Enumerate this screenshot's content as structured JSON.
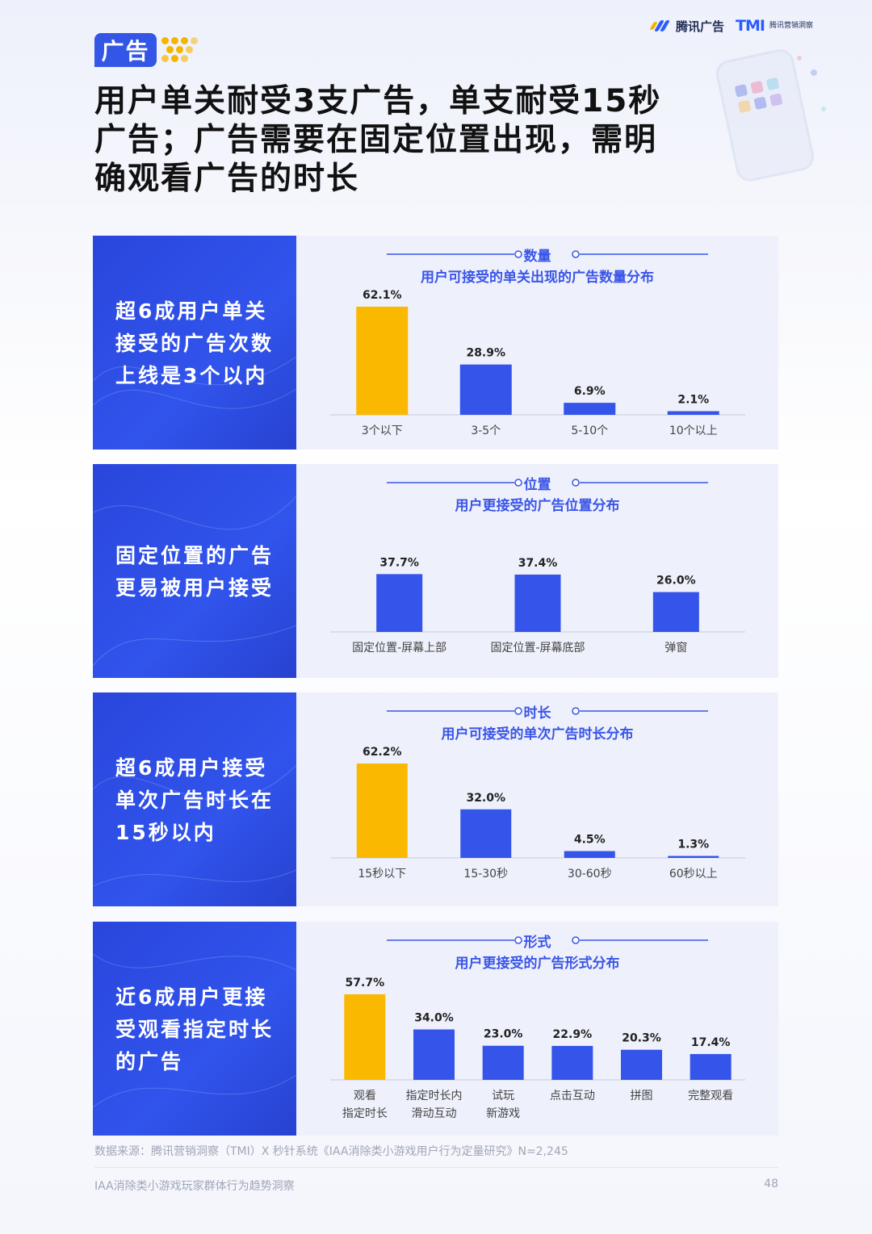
{
  "header": {
    "brand": "腾讯广告",
    "tmi": "TMI",
    "tmi_sub": "腾讯营销洞察",
    "tag": "广告",
    "title": "用户单关耐受3支广告，单支耐受15秒广告；广告需要在固定位置出现，需明确观看广告的时长"
  },
  "colors": {
    "highlight": "#fbb800",
    "bar": "#3454ea",
    "accent": "#3356e6"
  },
  "panels": [
    {
      "side_text": "超6成用户单关接受的广告次数上线是3个以内",
      "chart_title": "数量",
      "chart_subtitle": "用户可接受的单关出现的广告数量分布"
    },
    {
      "side_text": "固定位置的广告更易被用户接受",
      "chart_title": "位置",
      "chart_subtitle": "用户更接受的广告位置分布"
    },
    {
      "side_text": "超6成用户接受单次广告时长在15秒以内",
      "chart_title": "时长",
      "chart_subtitle": "用户可接受的单次广告时长分布"
    },
    {
      "side_text": "近6成用户更接受观看指定时长的广告",
      "chart_title": "形式",
      "chart_subtitle": "用户更接受的广告形式分布"
    }
  ],
  "chart_data": [
    {
      "type": "bar",
      "title": "数量",
      "subtitle": "用户可接受的单关出现的广告数量分布",
      "categories": [
        "3个以下",
        "3-5个",
        "5-10个",
        "10个以上"
      ],
      "values": [
        62.1,
        28.9,
        6.9,
        2.1
      ],
      "labels": [
        "62.1%",
        "28.9%",
        "6.9%",
        "2.1%"
      ],
      "highlight": [
        0
      ],
      "ylim": [
        0,
        62.1
      ]
    },
    {
      "type": "bar",
      "title": "位置",
      "subtitle": "用户更接受的广告位置分布",
      "categories": [
        "固定位置-屏幕上部",
        "固定位置-屏幕底部",
        "弹窗"
      ],
      "values": [
        37.7,
        37.4,
        26.0
      ],
      "labels": [
        "37.7%",
        "37.4%",
        "26.0%"
      ],
      "highlight": [],
      "ylim": [
        0,
        62.1
      ]
    },
    {
      "type": "bar",
      "title": "时长",
      "subtitle": "用户可接受的单次广告时长分布",
      "categories": [
        "15秒以下",
        "15-30秒",
        "30-60秒",
        "60秒以上"
      ],
      "values": [
        62.2,
        32.0,
        4.5,
        1.3
      ],
      "labels": [
        "62.2%",
        "32.0%",
        "4.5%",
        "1.3%"
      ],
      "highlight": [
        0
      ],
      "ylim": [
        0,
        62.2
      ]
    },
    {
      "type": "bar",
      "title": "形式",
      "subtitle": "用户更接受的广告形式分布",
      "categories": [
        "观看\n指定时长",
        "指定时长内\n滑动互动",
        "试玩\n新游戏",
        "点击互动",
        "拼图",
        "完整观看"
      ],
      "values": [
        57.7,
        34.0,
        23.0,
        22.9,
        20.3,
        17.4
      ],
      "labels": [
        "57.7%",
        "34.0%",
        "23.0%",
        "22.9%",
        "20.3%",
        "17.4%"
      ],
      "highlight": [
        0
      ],
      "ylim": [
        0,
        57.7
      ]
    }
  ],
  "footer": {
    "source": "数据来源：腾讯营销洞察（TMI）X 秒针系统《IAA消除类小游戏用户行为定量研究》N=2,245",
    "report_title": "IAA消除类小游戏玩家群体行为趋势洞察",
    "page": "48"
  }
}
